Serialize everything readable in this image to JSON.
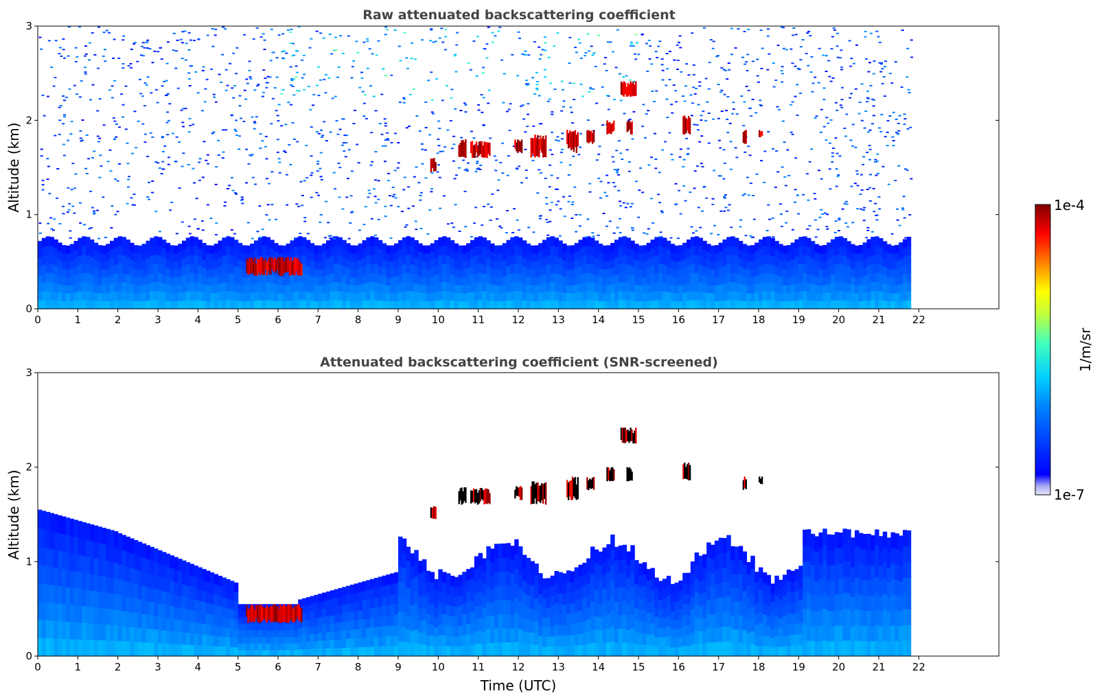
{
  "chart_data": [
    {
      "type": "heatmap",
      "title": "Raw attenuated backscattering coefficient",
      "xlabel": "",
      "ylabel": "Altitude (km)",
      "xlim": [
        0,
        24
      ],
      "ylim": [
        0,
        3
      ],
      "data_xlim": [
        0,
        21.8
      ],
      "xticks": [
        "0",
        "1",
        "2",
        "3",
        "4",
        "5",
        "6",
        "7",
        "8",
        "9",
        "10",
        "11",
        "12",
        "13",
        "14",
        "15",
        "16",
        "17",
        "18",
        "19",
        "20",
        "21",
        "22"
      ],
      "yticks": [
        "0",
        "1",
        "2",
        "3"
      ],
      "grid": false,
      "features": [
        {
          "kind": "aerosol boundary layer",
          "x": [
            0,
            21.8
          ],
          "y": [
            0,
            0.75
          ]
        },
        {
          "kind": "low cloud",
          "x": [
            5.2,
            6.6
          ],
          "y": [
            0.35,
            0.55
          ]
        },
        {
          "kind": "cloud patches",
          "x": [
            9.7,
            18.2
          ],
          "y": [
            1.5,
            2.45
          ]
        },
        {
          "kind": "noise",
          "x": [
            0,
            21.8
          ],
          "y": [
            1.0,
            3.0
          ]
        }
      ]
    },
    {
      "type": "heatmap",
      "title": "Attenuated backscattering coefficient (SNR-screened)",
      "xlabel": "Time (UTC)",
      "ylabel": "Altitude (km)",
      "xlim": [
        0,
        24
      ],
      "ylim": [
        0,
        3
      ],
      "data_xlim": [
        0,
        21.8
      ],
      "xticks": [
        "0",
        "1",
        "2",
        "3",
        "4",
        "5",
        "6",
        "7",
        "8",
        "9",
        "10",
        "11",
        "12",
        "13",
        "14",
        "15",
        "16",
        "17",
        "18",
        "19",
        "20",
        "21",
        "22"
      ],
      "yticks": [
        "0",
        "1",
        "2",
        "3"
      ],
      "grid": false,
      "features": [
        {
          "kind": "screened boundary layer",
          "x": [
            0,
            21.8
          ],
          "y": [
            0,
            1.6
          ]
        },
        {
          "kind": "low cloud",
          "x": [
            5.2,
            6.6
          ],
          "y": [
            0.35,
            0.55
          ]
        },
        {
          "kind": "cloud patches",
          "x": [
            9.7,
            18.2
          ],
          "y": [
            1.5,
            2.45
          ]
        }
      ]
    }
  ],
  "colorbar": {
    "top_label": "1e-4",
    "bottom_label": "1e-7",
    "label": "1/m/sr",
    "colormap": "jet",
    "range": [
      1e-07,
      0.0001
    ],
    "scale": "log"
  }
}
